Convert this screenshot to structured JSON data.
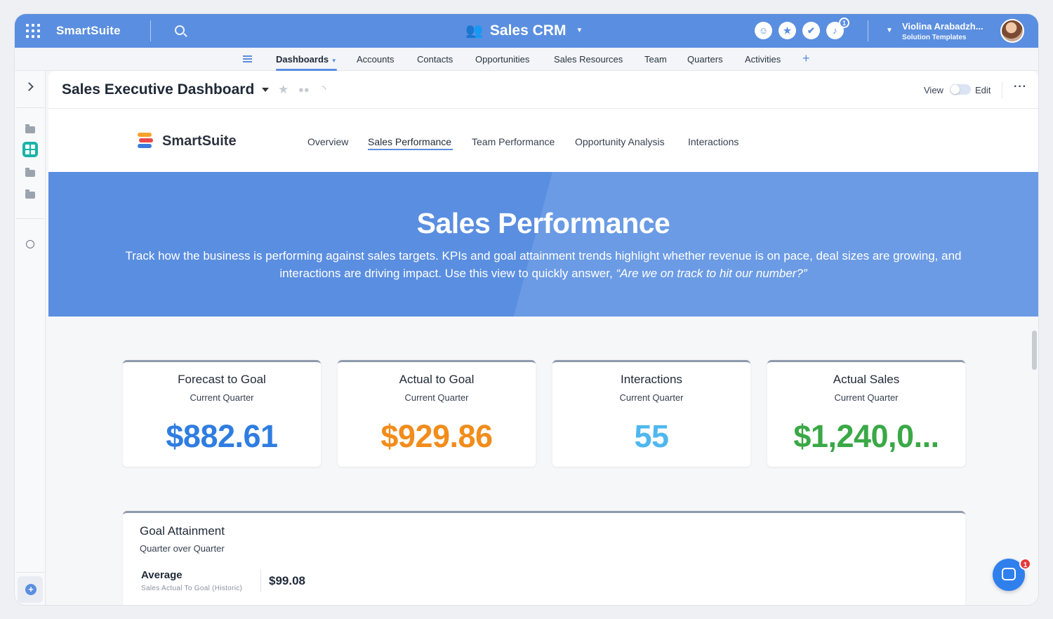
{
  "topbar": {
    "brand": "SmartSuite",
    "solution_title": "Sales CRM",
    "notification_count": "1",
    "user_name": "Violina Arabadzh...",
    "user_org": "Solution Templates",
    "accent": "#5a8ee0"
  },
  "app_tabs": {
    "items": [
      {
        "label": "Dashboards"
      },
      {
        "label": "Accounts"
      },
      {
        "label": "Contacts"
      },
      {
        "label": "Opportunities"
      },
      {
        "label": "Sales Resources"
      },
      {
        "label": "Team"
      },
      {
        "label": "Quarters"
      },
      {
        "label": "Activities"
      }
    ],
    "active": "Dashboards"
  },
  "page_header": {
    "title": "Sales Executive Dashboard",
    "view_label": "View",
    "edit_label": "Edit"
  },
  "dashboard_nav": {
    "logo_text": "SmartSuite",
    "tabs": [
      {
        "label": "Overview"
      },
      {
        "label": "Sales Performance"
      },
      {
        "label": "Team Performance"
      },
      {
        "label": "Opportunity Analysis"
      },
      {
        "label": "Interactions"
      }
    ],
    "active": "Sales Performance"
  },
  "hero": {
    "title": "Sales Performance",
    "description": "Track how the business is performing against sales targets. KPIs and goal attainment trends highlight whether revenue is on pace, deal sizes are growing, and interactions are driving impact. Use this view to quickly answer,",
    "quote": "“Are we on track to hit our number?”"
  },
  "kpis": [
    {
      "title": "Forecast to Goal",
      "subtitle": "Current Quarter",
      "value": "$882.61",
      "color": "#2f7de1"
    },
    {
      "title": "Actual to Goal",
      "subtitle": "Current Quarter",
      "value": "$929.86",
      "color": "#f28c1b"
    },
    {
      "title": "Interactions",
      "subtitle": "Current Quarter",
      "value": "55",
      "color": "#4fb7ee"
    },
    {
      "title": "Actual Sales",
      "subtitle": "Current Quarter",
      "value": "$1,240,0...",
      "color": "#3aa846"
    }
  ],
  "goal_attainment": {
    "title": "Goal Attainment",
    "subtitle": "Quarter over Quarter",
    "average_label": "Average",
    "average_sub": "Sales Actual To Goal (Historic)",
    "average_value": "$99.08"
  },
  "chat": {
    "badge": "1"
  }
}
